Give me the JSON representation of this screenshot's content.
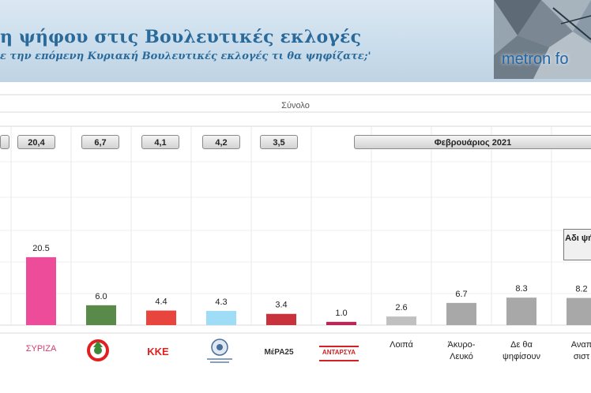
{
  "header": {
    "title": "η ψήφου στις Βουλευτικές εκλογές",
    "subtitle": "ε την επόμενη Κυριακή Βουλευτικές εκλογές τι θα ψηφίζατε;'",
    "logo_text": "metron fo"
  },
  "panel": {
    "title": "Σύνολο",
    "period_label": "Φεβρουάριος 2021",
    "adjusted_box": "Αδι ψή"
  },
  "previous_values": [
    "20,4",
    "6,7",
    "4,1",
    "4,2",
    "3,5"
  ],
  "logos": {
    "syriza": "ΣΥΡΙΖΑ",
    "kke": "ΚΚΕ",
    "mera25": "ΜέΡΑ25",
    "antarsya": "ΑΝΤΑΡΣΥΑ",
    "el": "ΕΛΛΗΝΙΚΗ ΛΥΣΗ"
  },
  "chart_data": {
    "type": "bar",
    "title": "Σύνολο",
    "categories": [
      "ΣΥΡΙΖΑ",
      "ΚΙΝΑΛ",
      "ΚΚΕ",
      "Ελληνική Λύση",
      "ΜέΡΑ25",
      "ΑΝΤΑΡΣΥΑ",
      "Λοιπά",
      "Άκυρο-Λευκό",
      "Δε θα ψηφίσουν",
      "Αναπ σιστ"
    ],
    "category_labels": [
      {
        "line1": "",
        "line2": ""
      },
      {
        "line1": "",
        "line2": ""
      },
      {
        "line1": "",
        "line2": ""
      },
      {
        "line1": "",
        "line2": ""
      },
      {
        "line1": "",
        "line2": ""
      },
      {
        "line1": "",
        "line2": ""
      },
      {
        "line1": "Λοιπά",
        "line2": ""
      },
      {
        "line1": "Άκυρο-",
        "line2": "Λευκό"
      },
      {
        "line1": "Δε θα",
        "line2": "ψηφίσουν"
      },
      {
        "line1": "Αναπ",
        "line2": "σιστ"
      }
    ],
    "values": [
      20.5,
      6.0,
      4.4,
      4.3,
      3.4,
      1.0,
      2.6,
      6.7,
      8.3,
      8.2
    ],
    "value_labels": [
      "20.5",
      "6.0",
      "4.4",
      "4.3",
      "3.4",
      "1.0",
      "2.6",
      "6.7",
      "8.3",
      "8.2"
    ],
    "colors": [
      "#ec4c99",
      "#5a8a4a",
      "#e8453e",
      "#9fdcf5",
      "#c8323c",
      "#b8265a",
      "#c0c0c0",
      "#a8a8a8",
      "#a8a8a8",
      "#a8a8a8"
    ],
    "previous": [
      "20,4",
      "6,7",
      "4,1",
      "4,2",
      "3,5"
    ],
    "grid": true
  }
}
